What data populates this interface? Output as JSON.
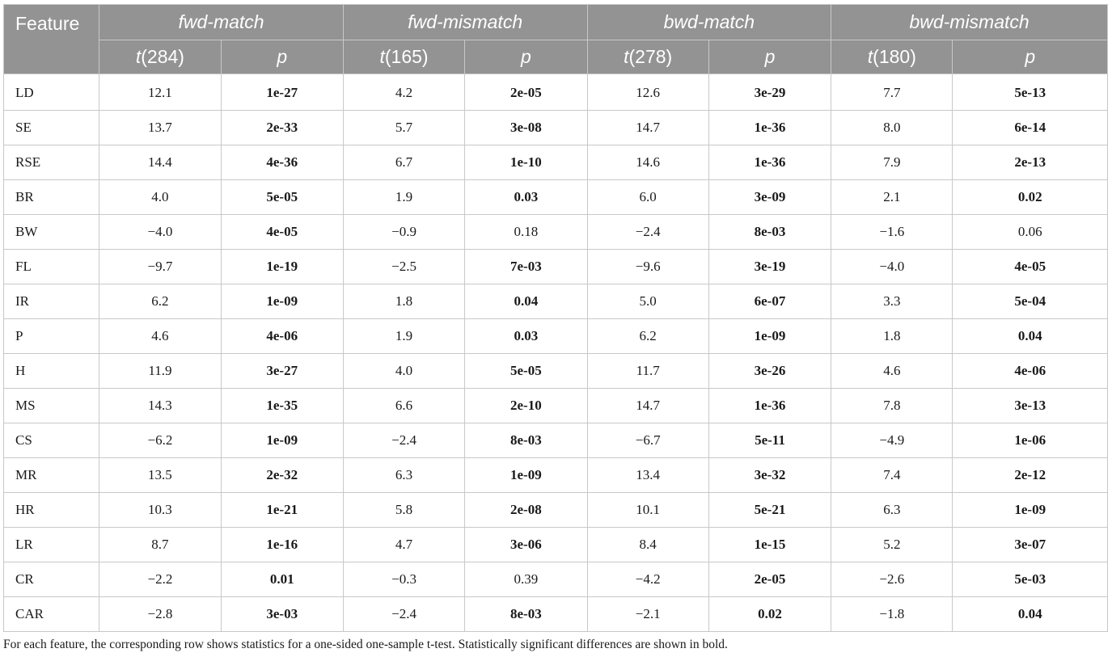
{
  "header": {
    "feature_label": "Feature",
    "groups": [
      {
        "name": "fwd-match",
        "t_df": "284"
      },
      {
        "name": "fwd-mismatch",
        "t_df": "165"
      },
      {
        "name": "bwd-match",
        "t_df": "278"
      },
      {
        "name": "bwd-mismatch",
        "t_df": "180"
      }
    ],
    "t_symbol": "t",
    "p_symbol": "p"
  },
  "rows": [
    {
      "feature": "LD",
      "cells": [
        [
          "12.1",
          "1e-27",
          true
        ],
        [
          "4.2",
          "2e-05",
          true
        ],
        [
          "12.6",
          "3e-29",
          true
        ],
        [
          "7.7",
          "5e-13",
          true
        ]
      ]
    },
    {
      "feature": "SE",
      "cells": [
        [
          "13.7",
          "2e-33",
          true
        ],
        [
          "5.7",
          "3e-08",
          true
        ],
        [
          "14.7",
          "1e-36",
          true
        ],
        [
          "8.0",
          "6e-14",
          true
        ]
      ]
    },
    {
      "feature": "RSE",
      "cells": [
        [
          "14.4",
          "4e-36",
          true
        ],
        [
          "6.7",
          "1e-10",
          true
        ],
        [
          "14.6",
          "1e-36",
          true
        ],
        [
          "7.9",
          "2e-13",
          true
        ]
      ]
    },
    {
      "feature": "BR",
      "cells": [
        [
          "4.0",
          "5e-05",
          true
        ],
        [
          "1.9",
          "0.03",
          true
        ],
        [
          "6.0",
          "3e-09",
          true
        ],
        [
          "2.1",
          "0.02",
          true
        ]
      ]
    },
    {
      "feature": "BW",
      "cells": [
        [
          "−4.0",
          "4e-05",
          true
        ],
        [
          "−0.9",
          "0.18",
          false
        ],
        [
          "−2.4",
          "8e-03",
          true
        ],
        [
          "−1.6",
          "0.06",
          false
        ]
      ]
    },
    {
      "feature": "FL",
      "cells": [
        [
          "−9.7",
          "1e-19",
          true
        ],
        [
          "−2.5",
          "7e-03",
          true
        ],
        [
          "−9.6",
          "3e-19",
          true
        ],
        [
          "−4.0",
          "4e-05",
          true
        ]
      ]
    },
    {
      "feature": "IR",
      "cells": [
        [
          "6.2",
          "1e-09",
          true
        ],
        [
          "1.8",
          "0.04",
          true
        ],
        [
          "5.0",
          "6e-07",
          true
        ],
        [
          "3.3",
          "5e-04",
          true
        ]
      ]
    },
    {
      "feature": "P",
      "cells": [
        [
          "4.6",
          "4e-06",
          true
        ],
        [
          "1.9",
          "0.03",
          true
        ],
        [
          "6.2",
          "1e-09",
          true
        ],
        [
          "1.8",
          "0.04",
          true
        ]
      ]
    },
    {
      "feature": "H",
      "cells": [
        [
          "11.9",
          "3e-27",
          true
        ],
        [
          "4.0",
          "5e-05",
          true
        ],
        [
          "11.7",
          "3e-26",
          true
        ],
        [
          "4.6",
          "4e-06",
          true
        ]
      ]
    },
    {
      "feature": "MS",
      "cells": [
        [
          "14.3",
          "1e-35",
          true
        ],
        [
          "6.6",
          "2e-10",
          true
        ],
        [
          "14.7",
          "1e-36",
          true
        ],
        [
          "7.8",
          "3e-13",
          true
        ]
      ]
    },
    {
      "feature": "CS",
      "cells": [
        [
          "−6.2",
          "1e-09",
          true
        ],
        [
          "−2.4",
          "8e-03",
          true
        ],
        [
          "−6.7",
          "5e-11",
          true
        ],
        [
          "−4.9",
          "1e-06",
          true
        ]
      ]
    },
    {
      "feature": "MR",
      "cells": [
        [
          "13.5",
          "2e-32",
          true
        ],
        [
          "6.3",
          "1e-09",
          true
        ],
        [
          "13.4",
          "3e-32",
          true
        ],
        [
          "7.4",
          "2e-12",
          true
        ]
      ]
    },
    {
      "feature": "HR",
      "cells": [
        [
          "10.3",
          "1e-21",
          true
        ],
        [
          "5.8",
          "2e-08",
          true
        ],
        [
          "10.1",
          "5e-21",
          true
        ],
        [
          "6.3",
          "1e-09",
          true
        ]
      ]
    },
    {
      "feature": "LR",
      "cells": [
        [
          "8.7",
          "1e-16",
          true
        ],
        [
          "4.7",
          "3e-06",
          true
        ],
        [
          "8.4",
          "1e-15",
          true
        ],
        [
          "5.2",
          "3e-07",
          true
        ]
      ]
    },
    {
      "feature": "CR",
      "cells": [
        [
          "−2.2",
          "0.01",
          true
        ],
        [
          "−0.3",
          "0.39",
          false
        ],
        [
          "−4.2",
          "2e-05",
          true
        ],
        [
          "−2.6",
          "5e-03",
          true
        ]
      ]
    },
    {
      "feature": "CAR",
      "cells": [
        [
          "−2.8",
          "3e-03",
          true
        ],
        [
          "−2.4",
          "8e-03",
          true
        ],
        [
          "−2.1",
          "0.02",
          true
        ],
        [
          "−1.8",
          "0.04",
          true
        ]
      ]
    }
  ],
  "footnote": "For each feature, the corresponding row shows statistics for a one-sided one-sample t-test. Statistically significant differences are shown in bold."
}
